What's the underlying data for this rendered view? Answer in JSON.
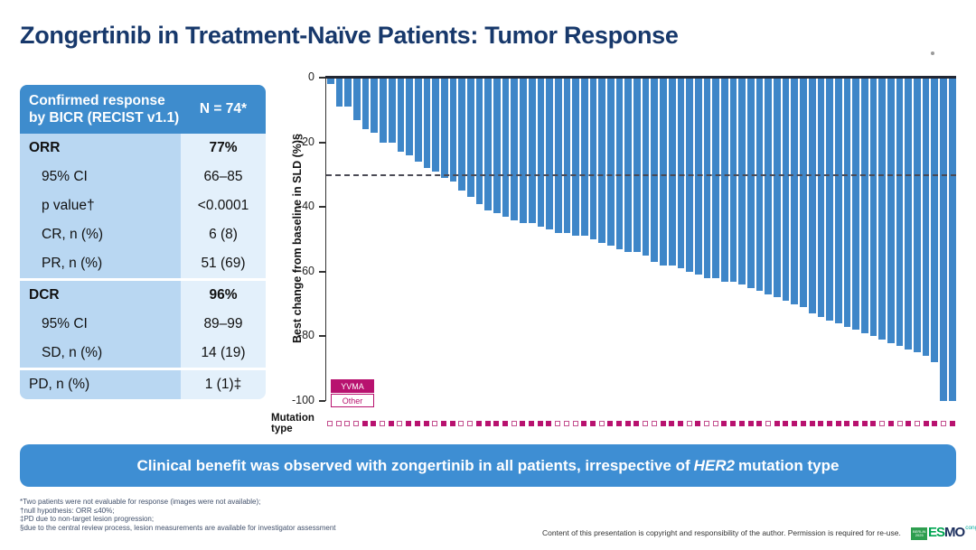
{
  "title": "Zongertinib in Treatment-Naïve Patients: Tumor Response",
  "table": {
    "header": {
      "label": "Confirmed response by BICR (RECIST v1.1)",
      "value": "N = 74*"
    },
    "rows": [
      {
        "label": "ORR",
        "value": "77%",
        "bold": true,
        "indent": false,
        "section_start": false
      },
      {
        "label": "95% CI",
        "value": "66–85",
        "bold": false,
        "indent": true,
        "section_start": false
      },
      {
        "label": "p value†",
        "value": "<0.0001",
        "bold": false,
        "indent": true,
        "section_start": false
      },
      {
        "label": "CR, n (%)",
        "value": "6 (8)",
        "bold": false,
        "indent": true,
        "section_start": false
      },
      {
        "label": "PR, n (%)",
        "value": "51 (69)",
        "bold": false,
        "indent": true,
        "section_start": false
      },
      {
        "label": "DCR",
        "value": "96%",
        "bold": true,
        "indent": false,
        "section_start": true
      },
      {
        "label": "95% CI",
        "value": "89–99",
        "bold": false,
        "indent": true,
        "section_start": false
      },
      {
        "label": "SD, n (%)",
        "value": "14 (19)",
        "bold": false,
        "indent": true,
        "section_start": false
      },
      {
        "label": "PD, n (%)",
        "value": "1 (1)‡",
        "bold": false,
        "indent": false,
        "section_start": true
      }
    ]
  },
  "chart_data": {
    "type": "bar",
    "subtype": "waterfall",
    "title": "",
    "xlabel": "",
    "ylabel": "Best change from baseline in SLD (%)§",
    "ylim": [
      -100,
      0
    ],
    "yticks": [
      0,
      -20,
      -40,
      -60,
      -80,
      -100
    ],
    "reference_line": -30,
    "grid": false,
    "legend_position": "bottom-left",
    "legend": [
      {
        "label": "YVMA",
        "fill": "#b8126f"
      },
      {
        "label": "Other",
        "fill": "#ffffff"
      }
    ],
    "bar_color": "#3e86c8",
    "values": [
      -2,
      -9,
      -9,
      -13,
      -16,
      -17,
      -20,
      -20,
      -23,
      -24,
      -26,
      -28,
      -29,
      -31,
      -32,
      -35,
      -37,
      -39,
      -41,
      -42,
      -43,
      -44,
      -45,
      -45,
      -46,
      -47,
      -48,
      -48,
      -49,
      -49,
      -50,
      -51,
      -52,
      -53,
      -54,
      -54,
      -55,
      -57,
      -58,
      -58,
      -59,
      -60,
      -61,
      -62,
      -62,
      -63,
      -63,
      -64,
      -65,
      -66,
      -67,
      -68,
      -69,
      -70,
      -71,
      -73,
      -74,
      -75,
      -76,
      -77,
      -78,
      -79,
      -80,
      -81,
      -82,
      -83,
      -84,
      -85,
      -86,
      -88,
      -100,
      -100
    ],
    "mutation_type": [
      "Other",
      "Other",
      "Other",
      "Other",
      "YVMA",
      "YVMA",
      "Other",
      "YVMA",
      "Other",
      "YVMA",
      "YVMA",
      "YVMA",
      "Other",
      "YVMA",
      "YVMA",
      "Other",
      "Other",
      "YVMA",
      "YVMA",
      "YVMA",
      "YVMA",
      "Other",
      "YVMA",
      "YVMA",
      "YVMA",
      "YVMA",
      "Other",
      "Other",
      "Other",
      "YVMA",
      "YVMA",
      "Other",
      "YVMA",
      "YVMA",
      "YVMA",
      "YVMA",
      "Other",
      "Other",
      "YVMA",
      "YVMA",
      "YVMA",
      "Other",
      "YVMA",
      "Other",
      "Other",
      "YVMA",
      "YVMA",
      "YVMA",
      "YVMA",
      "YVMA",
      "Other",
      "YVMA",
      "YVMA",
      "YVMA",
      "YVMA",
      "YVMA",
      "YVMA",
      "YVMA",
      "YVMA",
      "YVMA",
      "YVMA",
      "YVMA",
      "YVMA",
      "Other",
      "YVMA",
      "Other",
      "YVMA",
      "Other",
      "YVMA",
      "YVMA",
      "Other",
      "YVMA"
    ]
  },
  "mutation_row_label": "Mutation type",
  "banner": {
    "text_before": "Clinical benefit was observed with zongertinib in all patients, irrespective of",
    "italic": "HER2",
    "text_after": "mutation type"
  },
  "footnotes": [
    "*Two patients were not evaluable for response (images were not available);",
    "†null hypothesis: ORR ≤40%;",
    "‡PD due to non-target lesion progression;",
    "§due to the central review process, lesion measurements are available for investigator assessment"
  ],
  "copyright": "Content of this presentation is copyright and responsibility of the author. Permission is required for re-use.",
  "esmo": {
    "badge": "BERLIN 2025",
    "name_left": "ES",
    "name_right": "MO",
    "suffix": "congress"
  },
  "colors": {
    "title_navy": "#17386b",
    "table_header_blue": "#3e8ccd",
    "table_label_bg": "#b9d7f2",
    "table_value_bg": "#e3f0fb",
    "bar_blue": "#3e86c8",
    "magenta": "#b8126f",
    "banner_blue": "#3e8ed3"
  }
}
